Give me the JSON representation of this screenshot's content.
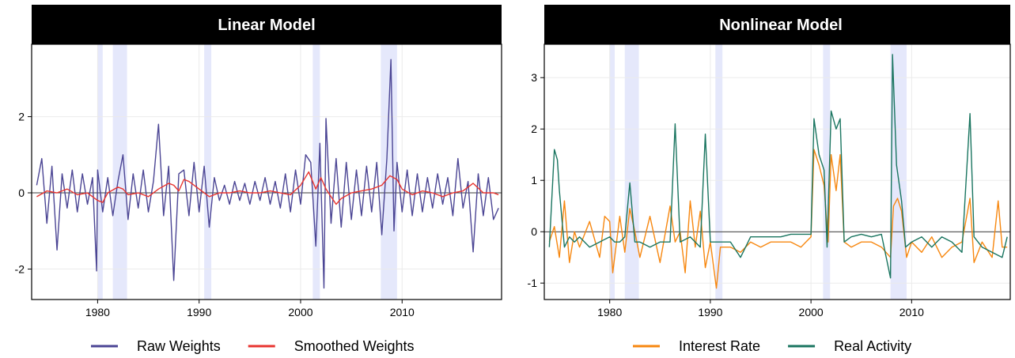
{
  "chart_data": [
    {
      "type": "line",
      "title": "Linear Model",
      "xlabel": "",
      "ylabel": "",
      "xlim": [
        1973.5,
        2019.8
      ],
      "ylim": [
        -2.8,
        3.9
      ],
      "x_ticks": [
        1980,
        1990,
        2000,
        2010
      ],
      "y_ticks": [
        -2,
        0,
        2
      ],
      "y_tick_labels": [
        "-2",
        "0",
        "2"
      ],
      "grid": true,
      "zero_line": true,
      "legend_position": "bottom",
      "recessions": [
        [
          1980.0,
          1980.5
        ],
        [
          1981.5,
          1982.9
        ],
        [
          1990.5,
          1991.2
        ],
        [
          2001.2,
          2001.9
        ],
        [
          2007.9,
          2009.5
        ]
      ],
      "series": [
        {
          "name": "Raw Weights",
          "color": "#4B4594",
          "x": [
            1974.0,
            1974.5,
            1975.0,
            1975.5,
            1976.0,
            1976.5,
            1977.0,
            1977.5,
            1978.0,
            1978.5,
            1979.0,
            1979.5,
            1979.9,
            1980.0,
            1980.5,
            1981.0,
            1981.5,
            1982.0,
            1982.5,
            1983.0,
            1983.5,
            1984.0,
            1984.5,
            1985.0,
            1985.5,
            1986.0,
            1986.5,
            1987.0,
            1987.5,
            1988.0,
            1988.5,
            1989.0,
            1989.5,
            1990.0,
            1990.5,
            1991.0,
            1991.5,
            1992.0,
            1992.5,
            1993.0,
            1993.5,
            1994.0,
            1994.5,
            1995.0,
            1995.5,
            1996.0,
            1996.5,
            1997.0,
            1997.5,
            1998.0,
            1998.5,
            1999.0,
            1999.5,
            2000.0,
            2000.5,
            2001.0,
            2001.5,
            2001.9,
            2002.3,
            2002.5,
            2003.0,
            2003.5,
            2004.0,
            2004.5,
            2005.0,
            2005.5,
            2006.0,
            2006.5,
            2007.0,
            2007.5,
            2008.0,
            2008.5,
            2008.9,
            2009.2,
            2009.5,
            2010.0,
            2010.5,
            2011.0,
            2011.5,
            2012.0,
            2012.5,
            2013.0,
            2013.5,
            2014.0,
            2014.5,
            2015.0,
            2015.5,
            2016.0,
            2016.5,
            2017.0,
            2017.5,
            2018.0,
            2018.5,
            2019.0,
            2019.5
          ],
          "values": [
            0.2,
            0.9,
            -0.8,
            0.7,
            -1.5,
            0.5,
            -0.4,
            0.6,
            -0.5,
            0.5,
            -0.3,
            0.4,
            -2.05,
            0.6,
            -0.5,
            0.4,
            -0.6,
            0.3,
            1.0,
            -0.7,
            0.5,
            -0.4,
            0.6,
            -0.5,
            0.3,
            1.8,
            -0.6,
            0.7,
            -2.3,
            0.5,
            0.6,
            -0.6,
            0.8,
            -0.5,
            0.7,
            -0.9,
            0.4,
            -0.2,
            0.2,
            -0.3,
            0.3,
            -0.2,
            0.25,
            -0.3,
            0.3,
            -0.2,
            0.4,
            -0.3,
            0.3,
            -0.4,
            0.5,
            -0.5,
            0.6,
            -0.3,
            1.0,
            0.8,
            -1.4,
            1.3,
            -2.5,
            1.95,
            -0.8,
            0.9,
            -0.9,
            0.8,
            -0.7,
            0.6,
            -0.6,
            0.7,
            -0.5,
            0.8,
            -1.1,
            0.9,
            3.5,
            -1.0,
            0.8,
            -0.5,
            0.6,
            -0.6,
            0.5,
            -0.5,
            0.4,
            -0.4,
            0.5,
            -0.3,
            0.4,
            -0.6,
            0.9,
            -0.4,
            0.3,
            -1.55,
            0.5,
            -0.6,
            0.4,
            -0.7,
            -0.4
          ]
        },
        {
          "name": "Smoothed Weights",
          "color": "#E8342F",
          "x": [
            1974.0,
            1975.0,
            1976.0,
            1977.0,
            1978.0,
            1979.0,
            1980.0,
            1980.5,
            1981.0,
            1982.0,
            1982.5,
            1983.0,
            1984.0,
            1985.0,
            1986.0,
            1987.0,
            1987.5,
            1988.0,
            1988.5,
            1989.0,
            1990.0,
            1991.0,
            1992.0,
            1993.0,
            1994.0,
            1995.0,
            1996.0,
            1997.0,
            1998.0,
            1999.0,
            2000.0,
            2000.8,
            2001.5,
            2002.0,
            2002.5,
            2003.0,
            2003.5,
            2004.0,
            2005.0,
            2006.0,
            2007.0,
            2008.0,
            2008.8,
            2009.5,
            2010.0,
            2011.0,
            2012.0,
            2013.0,
            2014.0,
            2015.0,
            2016.0,
            2017.0,
            2018.0,
            2019.0,
            2019.5
          ],
          "values": [
            -0.1,
            0.05,
            0.0,
            0.1,
            -0.05,
            0.0,
            -0.2,
            -0.25,
            0.0,
            0.15,
            0.1,
            -0.05,
            0.0,
            -0.1,
            0.1,
            0.25,
            0.2,
            0.05,
            0.35,
            0.3,
            0.1,
            -0.1,
            0.0,
            0.0,
            0.05,
            0.0,
            0.0,
            0.05,
            0.0,
            -0.05,
            0.2,
            0.55,
            0.1,
            0.4,
            0.1,
            -0.1,
            -0.3,
            -0.15,
            0.0,
            0.05,
            0.1,
            0.2,
            0.45,
            0.35,
            0.1,
            -0.05,
            0.05,
            0.0,
            -0.1,
            0.0,
            0.05,
            0.25,
            0.0,
            0.0,
            -0.05
          ]
        }
      ]
    },
    {
      "type": "line",
      "title": "Nonlinear Model",
      "xlabel": "",
      "ylabel": "",
      "xlim": [
        1973.5,
        2019.8
      ],
      "ylim": [
        -1.32,
        3.65
      ],
      "x_ticks": [
        1980,
        1990,
        2000,
        2010
      ],
      "y_ticks": [
        -1,
        0,
        1,
        2,
        3
      ],
      "y_tick_labels": [
        "-1",
        "0",
        "1",
        "2",
        "3"
      ],
      "grid": true,
      "zero_line": true,
      "legend_position": "bottom",
      "recessions": [
        [
          1980.0,
          1980.5
        ],
        [
          1981.5,
          1982.9
        ],
        [
          1990.5,
          1991.2
        ],
        [
          2001.2,
          2001.9
        ],
        [
          2007.9,
          2009.5
        ]
      ],
      "series": [
        {
          "name": "Interest Rate",
          "color": "#F7870F",
          "x": [
            1974.0,
            1974.5,
            1975.0,
            1975.5,
            1976.0,
            1976.5,
            1977.0,
            1978.0,
            1979.0,
            1979.5,
            1980.0,
            1980.3,
            1981.0,
            1981.5,
            1982.0,
            1982.5,
            1983.0,
            1984.0,
            1985.0,
            1986.0,
            1986.5,
            1987.0,
            1987.5,
            1988.0,
            1988.5,
            1989.0,
            1989.5,
            1990.0,
            1990.6,
            1991.0,
            1992.0,
            1993.0,
            1994.0,
            1995.0,
            1996.0,
            1997.0,
            1998.0,
            1999.0,
            2000.0,
            2000.3,
            2000.8,
            2001.3,
            2001.7,
            2002.0,
            2002.5,
            2002.9,
            2003.3,
            2004.0,
            2005.0,
            2006.0,
            2007.0,
            2007.9,
            2008.2,
            2008.6,
            2009.0,
            2009.5,
            2010.0,
            2011.0,
            2012.0,
            2013.0,
            2014.0,
            2015.0,
            2015.8,
            2016.2,
            2017.0,
            2018.0,
            2018.6,
            2019.0,
            2019.5
          ],
          "values": [
            -0.2,
            0.1,
            -0.5,
            0.6,
            -0.6,
            0.0,
            -0.3,
            0.2,
            -0.5,
            0.3,
            0.2,
            -0.8,
            0.3,
            -0.4,
            0.45,
            0.0,
            -0.5,
            0.3,
            -0.6,
            0.5,
            -0.2,
            0.0,
            -0.8,
            0.6,
            -0.3,
            0.4,
            -0.7,
            -0.2,
            -1.1,
            -0.3,
            -0.3,
            -0.4,
            -0.2,
            -0.3,
            -0.2,
            -0.2,
            -0.2,
            -0.3,
            -0.1,
            1.6,
            1.3,
            0.9,
            -0.2,
            1.5,
            0.8,
            1.5,
            -0.2,
            -0.3,
            -0.2,
            -0.2,
            -0.3,
            -0.5,
            0.5,
            0.65,
            0.4,
            -0.5,
            -0.2,
            -0.4,
            -0.1,
            -0.5,
            -0.3,
            -0.2,
            0.65,
            -0.6,
            -0.2,
            -0.5,
            0.6,
            -0.3,
            -0.3
          ]
        },
        {
          "name": "Real Activity",
          "color": "#1A7560",
          "x": [
            1974.0,
            1974.5,
            1974.8,
            1975.0,
            1975.5,
            1976.0,
            1976.5,
            1977.0,
            1978.0,
            1979.0,
            1980.0,
            1980.5,
            1981.0,
            1981.5,
            1982.0,
            1982.5,
            1983.0,
            1984.0,
            1985.0,
            1986.0,
            1986.5,
            1987.0,
            1988.0,
            1989.0,
            1989.5,
            1990.0,
            1990.6,
            1991.0,
            1992.0,
            1993.0,
            1994.0,
            1995.0,
            1996.0,
            1997.0,
            1998.0,
            1999.0,
            2000.0,
            2000.3,
            2000.8,
            2001.3,
            2001.6,
            2002.0,
            2002.5,
            2002.9,
            2003.3,
            2004.0,
            2005.0,
            2006.0,
            2007.0,
            2007.9,
            2008.1,
            2008.5,
            2009.0,
            2009.4,
            2010.0,
            2011.0,
            2012.0,
            2013.0,
            2014.0,
            2015.0,
            2015.8,
            2016.2,
            2017.0,
            2018.0,
            2019.0,
            2019.5
          ],
          "values": [
            -0.3,
            1.6,
            1.4,
            0.8,
            -0.3,
            -0.1,
            -0.2,
            -0.1,
            -0.3,
            -0.2,
            -0.1,
            -0.2,
            -0.2,
            -0.1,
            0.95,
            -0.2,
            -0.2,
            -0.3,
            -0.2,
            -0.2,
            2.1,
            -0.2,
            -0.1,
            -0.3,
            1.9,
            -0.2,
            -0.2,
            -0.2,
            -0.2,
            -0.5,
            -0.1,
            -0.1,
            -0.1,
            -0.1,
            -0.05,
            -0.05,
            -0.05,
            2.2,
            1.5,
            1.2,
            -0.3,
            2.35,
            2.0,
            2.2,
            -0.2,
            -0.1,
            -0.05,
            -0.1,
            -0.05,
            -0.9,
            3.45,
            1.3,
            0.6,
            -0.3,
            -0.2,
            -0.1,
            -0.3,
            -0.1,
            -0.2,
            -0.4,
            2.3,
            -0.1,
            -0.3,
            -0.4,
            -0.5,
            -0.1
          ]
        }
      ]
    }
  ]
}
